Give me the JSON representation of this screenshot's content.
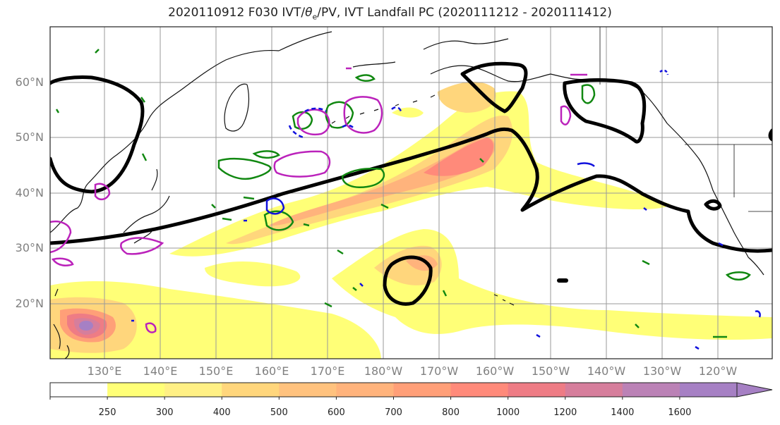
{
  "title": {
    "prefix": "2020110912 F030 IVT/",
    "theta": "θ",
    "theta_sub": "e",
    "suffix": "/PV, IVT Landfall PC (2020111212 - 2020111412)"
  },
  "map": {
    "lat_labels": [
      "60°N",
      "50°N",
      "40°N",
      "30°N",
      "20°N"
    ],
    "lon_labels": [
      "130°E",
      "140°E",
      "150°E",
      "160°E",
      "170°E",
      "180°W",
      "170°W",
      "160°W",
      "150°W",
      "140°W",
      "130°W",
      "120°W"
    ]
  },
  "colorbar": {
    "ticks": [
      "250",
      "300",
      "400",
      "500",
      "600",
      "700",
      "800",
      "1000",
      "1200",
      "1400",
      "1600"
    ],
    "colors": [
      "#ffffff",
      "#ffff77",
      "#fff085",
      "#ffd67c",
      "#ffc27e",
      "#ffb37c",
      "#ff9f78",
      "#ff8a7a",
      "#ee7c85",
      "#d67e9c",
      "#bb82b6",
      "#a680c4"
    ]
  },
  "colors": {
    "theta_e": "#000000",
    "pv_green": "#118811",
    "pv_magenta": "#bb22bb",
    "pv_blue": "#1111dd"
  }
}
